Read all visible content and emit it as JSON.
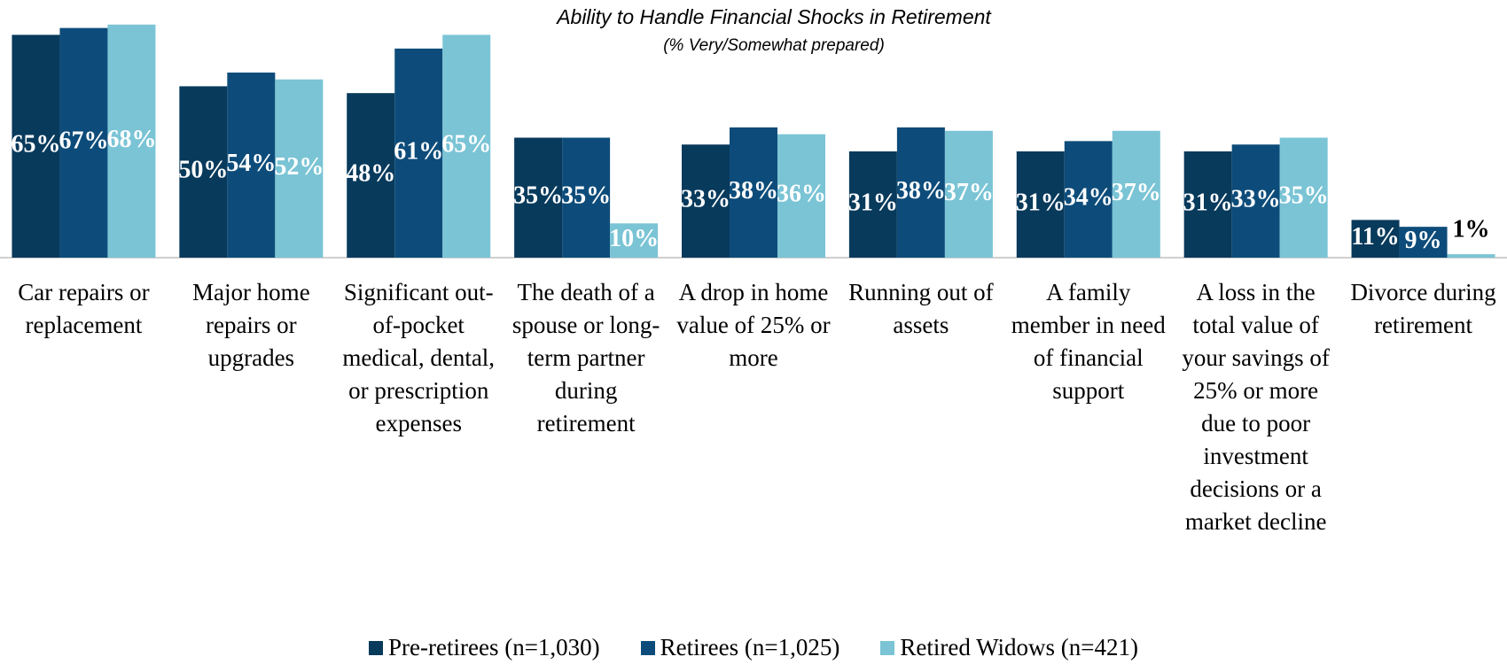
{
  "chart_data": {
    "type": "bar",
    "title": "Ability to Handle Financial Shocks in Retirement",
    "subtitle": "(% Very/Somewhat prepared)",
    "categories": [
      "Car repairs or replacement",
      "Major home repairs or upgrades",
      "Significant out-of-pocket medical, dental, or prescription expenses",
      "The death of a spouse or long-term partner during retirement",
      "A drop in home value of 25% or more",
      "Running out of assets",
      "A family member in need of financial support",
      "A loss in the total value of your savings of 25% or more due to poor investment decisions or a market decline",
      "Divorce during retirement"
    ],
    "series": [
      {
        "name": "Pre-retirees (n=1,030)",
        "color": "#083a5c",
        "values": [
          65,
          50,
          48,
          35,
          33,
          31,
          31,
          31,
          11
        ],
        "value_labels": [
          "65%",
          "50%",
          "48%",
          "35%",
          "33%",
          "31%",
          "31%",
          "31%",
          "11%"
        ]
      },
      {
        "name": "Retirees (n=1,025)",
        "color": "#0d4c7a",
        "values": [
          67,
          54,
          61,
          35,
          38,
          38,
          34,
          33,
          9
        ],
        "value_labels": [
          "67%",
          "54%",
          "61%",
          "35%",
          "38%",
          "38%",
          "34%",
          "33%",
          "9%"
        ]
      },
      {
        "name": "Retired Widows (n=421)",
        "color": "#7ac4d5",
        "values": [
          68,
          52,
          65,
          10,
          36,
          37,
          37,
          35,
          1
        ],
        "value_labels": [
          "68%",
          "52%",
          "65%",
          "10%",
          "36%",
          "37%",
          "37%",
          "35%",
          "1%"
        ]
      }
    ],
    "ylim": [
      0,
      70
    ],
    "legend": "bottom"
  }
}
